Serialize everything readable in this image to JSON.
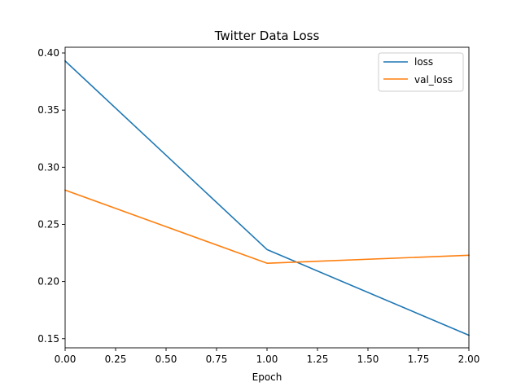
{
  "chart_data": {
    "type": "line",
    "title": "Twitter Data Loss",
    "xlabel": "Epoch",
    "ylabel": "",
    "x": [
      0,
      1,
      2
    ],
    "series": [
      {
        "name": "loss",
        "values": [
          0.393,
          0.228,
          0.153
        ],
        "color": "#1f77b4"
      },
      {
        "name": "val_loss",
        "values": [
          0.28,
          0.216,
          0.223
        ],
        "color": "#ff7f0e"
      }
    ],
    "xlim": [
      0,
      2
    ],
    "ylim": [
      0.142,
      0.405
    ],
    "xticks": [
      {
        "value": 0,
        "label": "0.00"
      },
      {
        "value": 0.25,
        "label": "0.25"
      },
      {
        "value": 0.5,
        "label": "0.50"
      },
      {
        "value": 0.75,
        "label": "0.75"
      },
      {
        "value": 1,
        "label": "1.00"
      },
      {
        "value": 1.25,
        "label": "1.25"
      },
      {
        "value": 1.5,
        "label": "1.50"
      },
      {
        "value": 1.75,
        "label": "1.75"
      },
      {
        "value": 2,
        "label": "2.00"
      }
    ],
    "yticks": [
      {
        "value": 0.15,
        "label": "0.15"
      },
      {
        "value": 0.2,
        "label": "0.20"
      },
      {
        "value": 0.25,
        "label": "0.25"
      },
      {
        "value": 0.3,
        "label": "0.30"
      },
      {
        "value": 0.35,
        "label": "0.35"
      },
      {
        "value": 0.4,
        "label": "0.40"
      }
    ],
    "grid": false,
    "legend_position": "top-right"
  }
}
